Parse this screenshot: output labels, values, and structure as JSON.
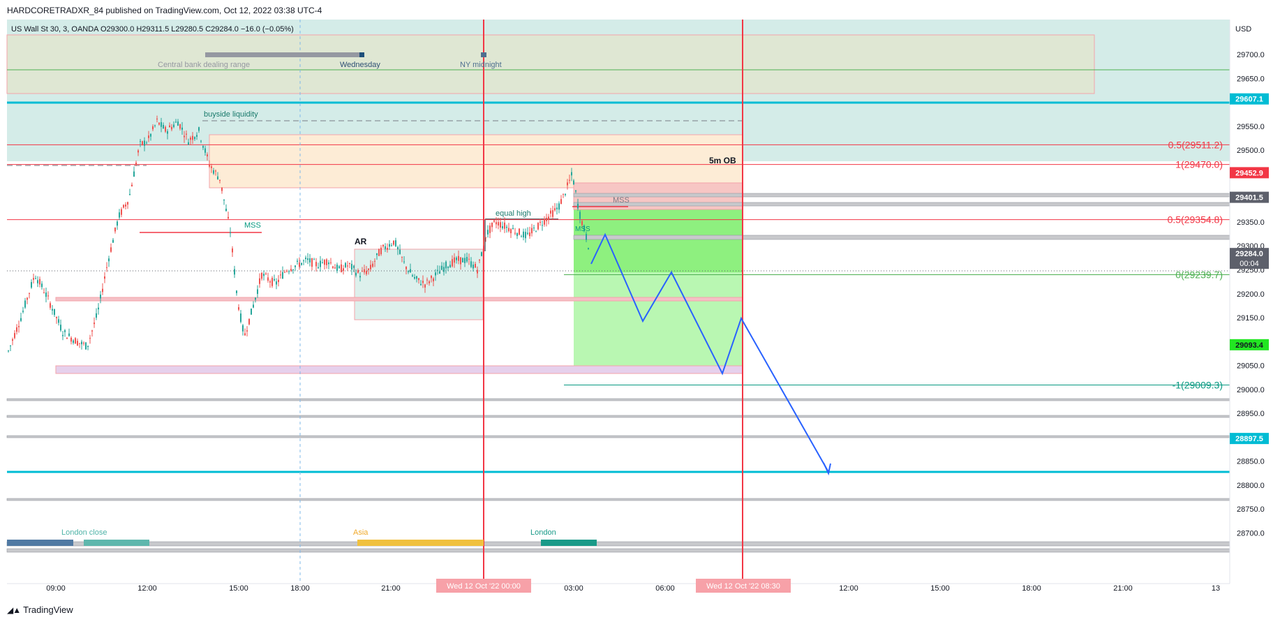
{
  "header": {
    "published": "HARDCORETRADXR_84 published on TradingView.com, Oct 12, 2022 03:38 UTC-4"
  },
  "footer": {
    "brand": "TradingView",
    "logo_icon": "tradingview-logo-icon"
  },
  "chart_data": {
    "type": "candlestick",
    "symbol_line": "US Wall St 30, 3, OANDA  O29300.0  H29311.5  L29280.5  C29284.0  −16.0 (−0.05%)",
    "currency": "USD",
    "ylim": [
      28700,
      29750
    ],
    "x_axis_ticks": [
      "09:00",
      "12:00",
      "15:00",
      "18:00",
      "21:00",
      "03:00",
      "06:00",
      "12:00",
      "15:00",
      "18:00",
      "21:00",
      "13"
    ],
    "y_axis_ticks": [
      "29700.0",
      "29650.0",
      "29550.0",
      "29500.0",
      "29350.0",
      "29300.0",
      "29250.0",
      "29200.0",
      "29150.0",
      "29050.0",
      "29000.0",
      "28950.0",
      "28850.0",
      "28800.0",
      "28750.0",
      "28700.0"
    ],
    "price_badges": [
      {
        "label": "29607.1",
        "value": 29607.1,
        "color": "#00bcd4"
      },
      {
        "label": "29452.9",
        "value": 29452.9,
        "color": "#f23645"
      },
      {
        "label": "29401.5",
        "value": 29401.5,
        "color": "#5d606b"
      },
      {
        "label": "29284.0",
        "sub": "00:04",
        "value": 29284.0,
        "color": "#5d606b"
      },
      {
        "label": "29093.4",
        "value": 29093.4,
        "color": "#22e622"
      },
      {
        "label": "28897.5",
        "value": 28897.5,
        "color": "#00bcd4"
      }
    ],
    "date_badges": [
      "Wed 12 Oct '22  00:00",
      "Wed 12 Oct '22  08:30"
    ],
    "fib_levels": [
      {
        "label": "0.5(29511.2)",
        "value": 29511.2,
        "color": "#f23645"
      },
      {
        "label": "1(29470.0)",
        "value": 29470.0,
        "color": "#f23645"
      },
      {
        "label": "0.5(29354.8)",
        "value": 29354.8,
        "color": "#f23645"
      },
      {
        "label": "0(29239.7)",
        "value": 29239.7,
        "color": "#4caf50"
      },
      {
        "label": "-1(29009.3)",
        "value": 29009.3,
        "color": "#089981"
      }
    ],
    "annotations": {
      "range": "Central bank dealing range",
      "wednesday": "Wednesday",
      "ny_midnight": "NY midnight",
      "buyside": "buyside liquidity",
      "ob": "5m OB",
      "mss1": "MSS",
      "mss2": "MSS",
      "mss3": "MSS",
      "equal_high": "equal high",
      "ar": "AR",
      "london_close": "London close",
      "asia": "Asia",
      "london": "London"
    },
    "projection_path": [
      [
        29310,
        29284
      ],
      [
        29355,
        29355
      ],
      [
        29190,
        29190
      ],
      [
        29280,
        29280
      ],
      [
        29090,
        29090
      ],
      [
        29195,
        29195
      ],
      [
        28895,
        28895
      ]
    ],
    "colors": {
      "bull": "#26a69a",
      "bear": "#ef5350",
      "projection": "#2962ff",
      "session_vline": "#f23645"
    }
  }
}
